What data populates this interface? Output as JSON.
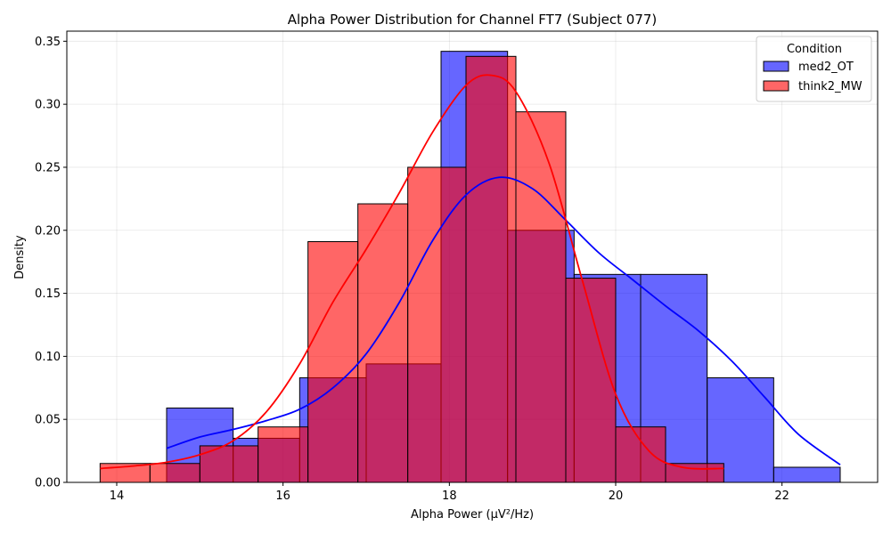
{
  "chart_data": {
    "type": "histogram",
    "title": "Alpha Power Distribution for Channel FT7 (Subject 077)",
    "xlabel": "Alpha Power (µV²/Hz)",
    "ylabel": "Density",
    "xlim": [
      13.4,
      23.15
    ],
    "ylim": [
      0,
      0.358
    ],
    "xticks": [
      14,
      16,
      18,
      20,
      22
    ],
    "yticks": [
      0.0,
      0.05,
      0.1,
      0.15,
      0.2,
      0.25,
      0.3,
      0.35
    ],
    "grid": true,
    "legend": {
      "title": "Condition",
      "placement": "top-right"
    },
    "series": [
      {
        "name": "med2_OT",
        "color": "#0000ff",
        "bins": [
          {
            "x0": 14.6,
            "x1": 15.4,
            "density": 0.059
          },
          {
            "x0": 15.4,
            "x1": 16.2,
            "density": 0.035
          },
          {
            "x0": 16.2,
            "x1": 17.0,
            "density": 0.083
          },
          {
            "x0": 17.0,
            "x1": 17.9,
            "density": 0.094
          },
          {
            "x0": 17.9,
            "x1": 18.7,
            "density": 0.342
          },
          {
            "x0": 18.7,
            "x1": 19.5,
            "density": 0.2
          },
          {
            "x0": 19.5,
            "x1": 20.3,
            "density": 0.165
          },
          {
            "x0": 20.3,
            "x1": 21.1,
            "density": 0.165
          },
          {
            "x0": 21.1,
            "x1": 21.9,
            "density": 0.083
          },
          {
            "x0": 21.9,
            "x1": 22.7,
            "density": 0.012
          }
        ],
        "kde": {
          "x": [
            14.6,
            15.0,
            15.4,
            15.8,
            16.2,
            16.6,
            17.0,
            17.4,
            17.8,
            18.2,
            18.6,
            19.0,
            19.4,
            19.8,
            20.2,
            20.6,
            21.0,
            21.4,
            21.8,
            22.2,
            22.7
          ],
          "y": [
            0.027,
            0.036,
            0.042,
            0.049,
            0.058,
            0.075,
            0.102,
            0.143,
            0.192,
            0.228,
            0.242,
            0.233,
            0.208,
            0.182,
            0.161,
            0.14,
            0.12,
            0.096,
            0.067,
            0.038,
            0.014
          ]
        }
      },
      {
        "name": "think2_MW",
        "color": "#ff0000",
        "bins": [
          {
            "x0": 13.8,
            "x1": 14.4,
            "density": 0.015
          },
          {
            "x0": 14.4,
            "x1": 15.0,
            "density": 0.015
          },
          {
            "x0": 15.0,
            "x1": 15.7,
            "density": 0.029
          },
          {
            "x0": 15.7,
            "x1": 16.3,
            "density": 0.044
          },
          {
            "x0": 16.3,
            "x1": 16.9,
            "density": 0.191
          },
          {
            "x0": 16.9,
            "x1": 17.5,
            "density": 0.221
          },
          {
            "x0": 17.5,
            "x1": 18.2,
            "density": 0.25
          },
          {
            "x0": 18.2,
            "x1": 18.8,
            "density": 0.338
          },
          {
            "x0": 18.8,
            "x1": 19.4,
            "density": 0.294
          },
          {
            "x0": 19.4,
            "x1": 20.0,
            "density": 0.162
          },
          {
            "x0": 20.0,
            "x1": 20.6,
            "density": 0.044
          },
          {
            "x0": 20.6,
            "x1": 21.3,
            "density": 0.015
          }
        ],
        "kde": {
          "x": [
            13.8,
            14.2,
            14.6,
            15.0,
            15.4,
            15.8,
            16.2,
            16.6,
            17.0,
            17.4,
            17.8,
            18.2,
            18.5,
            18.8,
            19.2,
            19.6,
            20.0,
            20.4,
            20.8,
            21.3
          ],
          "y": [
            0.011,
            0.013,
            0.016,
            0.022,
            0.033,
            0.056,
            0.094,
            0.143,
            0.185,
            0.23,
            0.278,
            0.315,
            0.323,
            0.31,
            0.253,
            0.16,
            0.07,
            0.025,
            0.012,
            0.011
          ]
        }
      }
    ]
  }
}
